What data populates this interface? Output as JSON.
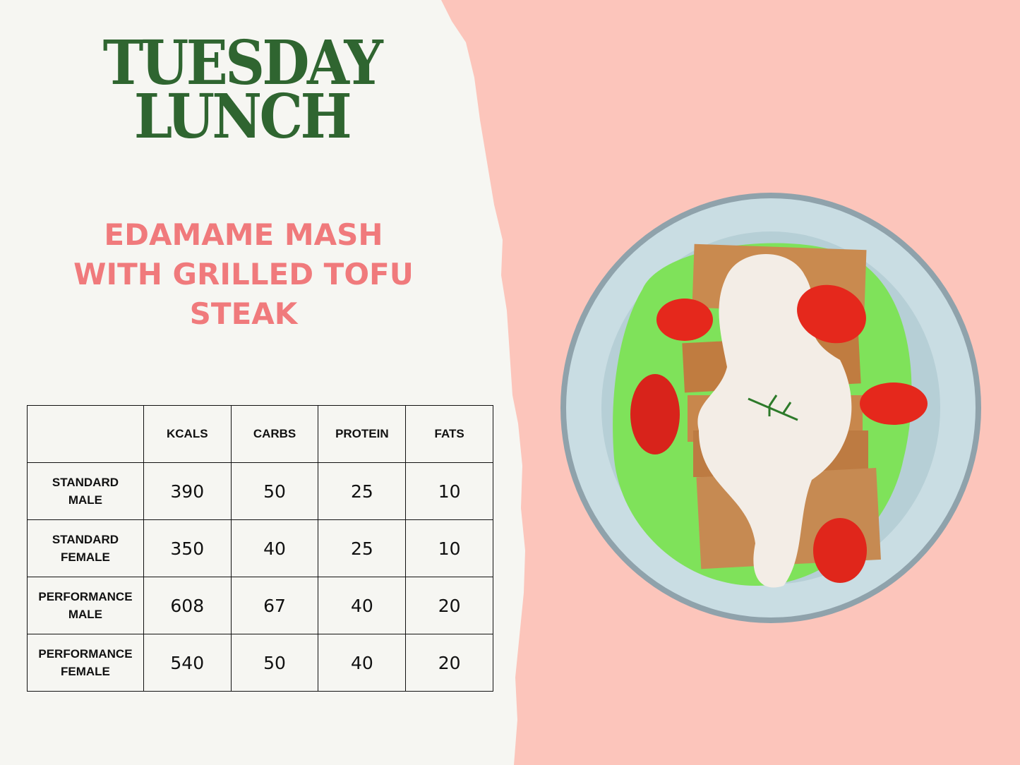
{
  "header": {
    "title_line1": "TUESDAY",
    "title_line2": "LUNCH"
  },
  "dish": {
    "line1": "EDAMAME MASH",
    "line2": "WITH GRILLED TOFU",
    "line3": "STEAK"
  },
  "nutrition_table": {
    "columns": [
      "",
      "KCALS",
      "CARBS",
      "PROTEIN",
      "FATS"
    ],
    "rows": [
      {
        "label1": "STANDARD",
        "label2": "MALE",
        "values": [
          "390",
          "50",
          "25",
          "10"
        ]
      },
      {
        "label1": "STANDARD",
        "label2": "FEMALE",
        "values": [
          "350",
          "40",
          "25",
          "10"
        ]
      },
      {
        "label1": "PERFORMANCE",
        "label2": "MALE",
        "values": [
          "608",
          "67",
          "40",
          "20"
        ]
      },
      {
        "label1": "PERFORMANCE",
        "label2": "FEMALE",
        "values": [
          "540",
          "50",
          "40",
          "20"
        ]
      }
    ]
  },
  "colors": {
    "title": "#2f6530",
    "dish": "#f07a7c",
    "background_right": "#fcc5bb",
    "paper": "#f6f6f2"
  },
  "image": {
    "subject": "dish-photo"
  }
}
